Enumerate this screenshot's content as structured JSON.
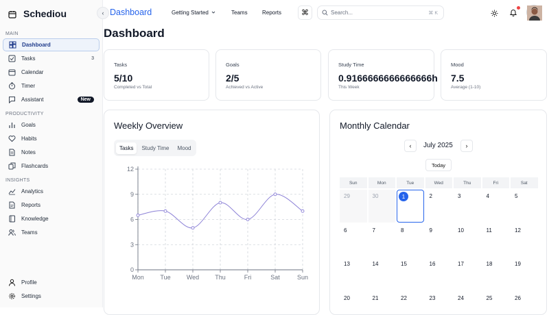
{
  "brand": {
    "name": "Schediou"
  },
  "sidebar": {
    "sections": [
      {
        "label": "Main"
      },
      {
        "label": "Productivity"
      },
      {
        "label": "Insights"
      }
    ],
    "main_items": [
      {
        "label": "Dashboard",
        "icon": "grid-icon",
        "active": true
      },
      {
        "label": "Tasks",
        "icon": "checkbox-icon",
        "badge": "3"
      },
      {
        "label": "Calendar",
        "icon": "calendar-icon"
      },
      {
        "label": "Timer",
        "icon": "stopwatch-icon"
      },
      {
        "label": "Assistant",
        "icon": "chat-icon",
        "badge": "New"
      }
    ],
    "productivity_items": [
      {
        "label": "Goals",
        "icon": "bar-chart-icon"
      },
      {
        "label": "Habits",
        "icon": "heart-icon"
      },
      {
        "label": "Notes",
        "icon": "note-icon"
      },
      {
        "label": "Flashcards",
        "icon": "cards-icon"
      }
    ],
    "insights_items": [
      {
        "label": "Analytics",
        "icon": "trend-line-icon"
      },
      {
        "label": "Reports",
        "icon": "document-icon"
      },
      {
        "label": "Knowledge",
        "icon": "book-icon"
      },
      {
        "label": "Teams",
        "icon": "users-icon"
      }
    ],
    "footer_items": [
      {
        "label": "Profile",
        "icon": "user-icon"
      },
      {
        "label": "Settings",
        "icon": "gear-icon"
      }
    ]
  },
  "header": {
    "title": "Dashboard",
    "links": [
      "Getting Started",
      "Teams",
      "Reports"
    ],
    "search_placeholder": "Search...",
    "search_shortcut": "⌘ K"
  },
  "page": {
    "title": "Dashboard"
  },
  "stats": [
    {
      "label": "Tasks",
      "value": "5/10",
      "sub": "Completed vs Total"
    },
    {
      "label": "Goals",
      "value": "2/5",
      "sub": "Achieved vs Active"
    },
    {
      "label": "Study Time",
      "value": "0.9166666666666666h",
      "sub": "This Week"
    },
    {
      "label": "Mood",
      "value": "7.5",
      "sub": "Average (1-10)"
    }
  ],
  "weekly": {
    "title": "Weekly Overview",
    "tabs": [
      "Tasks",
      "Study Time",
      "Mood"
    ],
    "active_tab": "Tasks"
  },
  "chart_data": {
    "type": "line",
    "categories": [
      "Mon",
      "Tue",
      "Wed",
      "Thu",
      "Fri",
      "Sat",
      "Sun"
    ],
    "series": [
      {
        "values": [
          6.5,
          7,
          5,
          8,
          6,
          9,
          7
        ]
      }
    ],
    "yticks": [
      0,
      3,
      6,
      9,
      12
    ],
    "ylim": [
      0,
      12
    ],
    "grid": true,
    "line_color": "#8b80d6"
  },
  "calendar": {
    "title": "Monthly Calendar",
    "month": "July 2025",
    "today_label": "Today",
    "weekdays": [
      "Sun",
      "Mon",
      "Tue",
      "Wed",
      "Thu",
      "Fri",
      "Sat"
    ],
    "weeks": [
      [
        "29",
        "30",
        "1",
        "2",
        "3",
        "4",
        "5"
      ],
      [
        "6",
        "7",
        "8",
        "9",
        "10",
        "11",
        "12"
      ],
      [
        "13",
        "14",
        "15",
        "16",
        "17",
        "18",
        "19"
      ],
      [
        "20",
        "21",
        "22",
        "23",
        "24",
        "25",
        "26"
      ]
    ],
    "muted_days": [
      "29",
      "30"
    ],
    "today": "1",
    "accent": "#2563eb"
  }
}
